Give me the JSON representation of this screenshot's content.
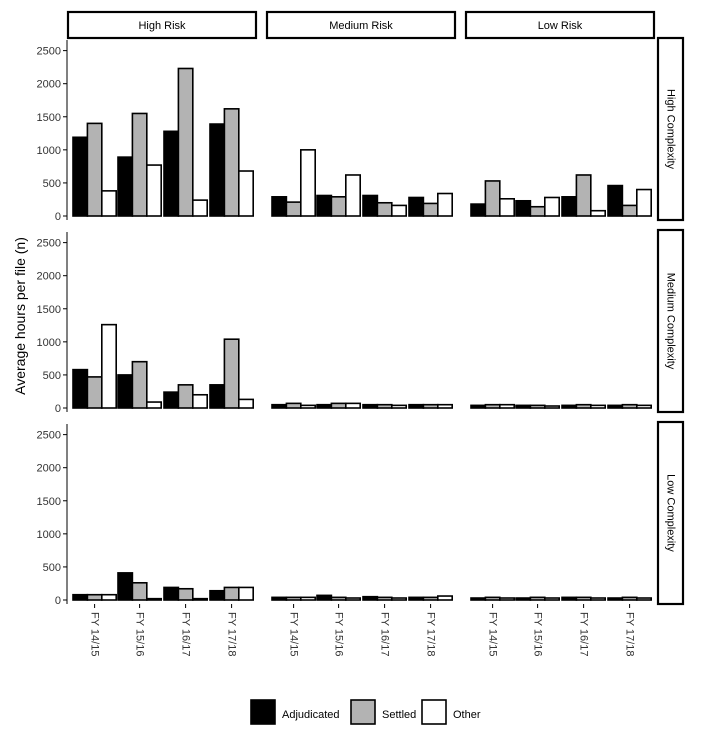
{
  "chart_data": {
    "type": "bar",
    "ylabel": "Average hours per file (n)",
    "xlabel": "",
    "ylim": [
      0,
      2600
    ],
    "yticks": [
      0,
      500,
      1000,
      1500,
      2000,
      2500
    ],
    "categories": [
      "FY 14/15",
      "FY 15/16",
      "FY 16/17",
      "FY 17/18"
    ],
    "column_facets": [
      "High Risk",
      "Medium Risk",
      "Low Risk"
    ],
    "row_facets": [
      "High Complexity",
      "Medium Complexity",
      "Low Complexity"
    ],
    "series_names": [
      "Adjudicated",
      "Settled",
      "Other"
    ],
    "series_colors": [
      "#000000",
      "#b3b3b3",
      "#ffffff"
    ],
    "legend": {
      "position": "bottom"
    },
    "grid": false,
    "panels": [
      [
        {
          "row": "High Complexity",
          "column": "High Risk",
          "values": [
            [
              1190,
              890,
              1280,
              1390
            ],
            [
              1400,
              1550,
              2230,
              1620
            ],
            [
              380,
              770,
              240,
              680
            ]
          ]
        },
        {
          "row": "High Complexity",
          "column": "Medium Risk",
          "values": [
            [
              290,
              310,
              310,
              280
            ],
            [
              210,
              290,
              200,
              190
            ],
            [
              1000,
              620,
              160,
              340
            ]
          ]
        },
        {
          "row": "High Complexity",
          "column": "Low Risk",
          "values": [
            [
              180,
              230,
              290,
              460
            ],
            [
              530,
              140,
              620,
              160
            ],
            [
              260,
              280,
              80,
              400
            ]
          ]
        }
      ],
      [
        {
          "row": "Medium Complexity",
          "column": "High Risk",
          "values": [
            [
              580,
              500,
              240,
              350
            ],
            [
              470,
              700,
              350,
              1040
            ],
            [
              1260,
              90,
              200,
              130
            ]
          ]
        },
        {
          "row": "Medium Complexity",
          "column": "Medium Risk",
          "values": [
            [
              50,
              50,
              50,
              50
            ],
            [
              70,
              70,
              50,
              50
            ],
            [
              40,
              70,
              40,
              50
            ]
          ]
        },
        {
          "row": "Medium Complexity",
          "column": "Low Risk",
          "values": [
            [
              40,
              40,
              40,
              40
            ],
            [
              50,
              40,
              50,
              50
            ],
            [
              50,
              30,
              40,
              40
            ]
          ]
        }
      ],
      [
        {
          "row": "Low Complexity",
          "column": "High Risk",
          "values": [
            [
              80,
              410,
              190,
              140
            ],
            [
              80,
              260,
              170,
              190
            ],
            [
              80,
              20,
              20,
              190
            ]
          ]
        },
        {
          "row": "Low Complexity",
          "column": "Medium Risk",
          "values": [
            [
              40,
              70,
              50,
              40
            ],
            [
              40,
              40,
              40,
              40
            ],
            [
              40,
              30,
              30,
              60
            ]
          ]
        },
        {
          "row": "Low Complexity",
          "column": "Low Risk",
          "values": [
            [
              30,
              30,
              40,
              30
            ],
            [
              40,
              40,
              40,
              40
            ],
            [
              30,
              30,
              30,
              30
            ]
          ]
        }
      ]
    ]
  }
}
